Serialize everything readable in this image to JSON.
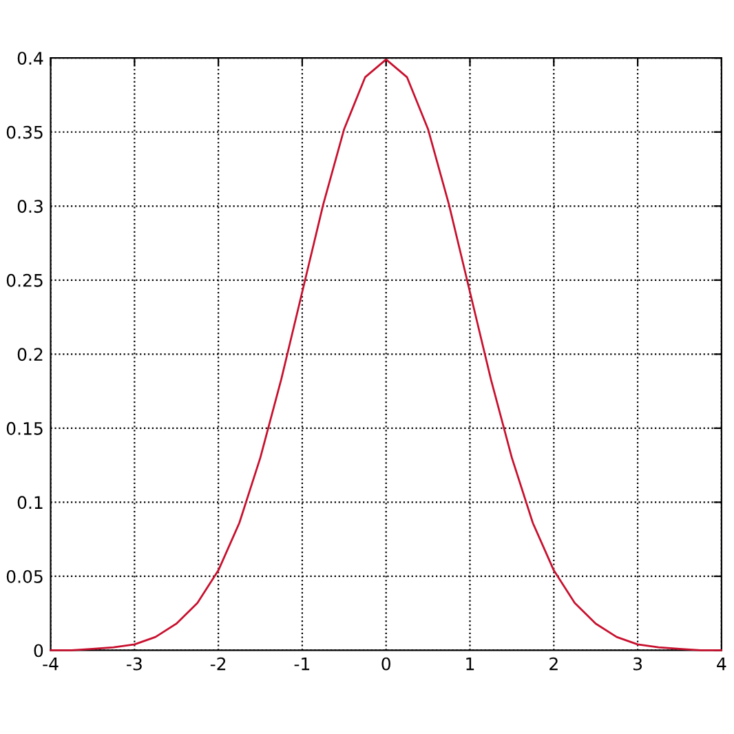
{
  "chart_data": {
    "type": "line",
    "x": [
      -4,
      -3.75,
      -3.5,
      -3.25,
      -3,
      -2.75,
      -2.5,
      -2.25,
      -2,
      -1.75,
      -1.5,
      -1.25,
      -1,
      -0.75,
      -0.5,
      -0.25,
      0,
      0.25,
      0.5,
      0.75,
      1,
      1.25,
      1.5,
      1.75,
      2,
      2.25,
      2.5,
      2.75,
      3,
      3.25,
      3.5,
      3.75,
      4
    ],
    "series": [
      {
        "color": "#c8102e",
        "values": [
          0.0,
          0.0,
          0.001,
          0.002,
          0.004,
          0.009,
          0.018,
          0.032,
          0.054,
          0.086,
          0.13,
          0.183,
          0.242,
          0.301,
          0.352,
          0.387,
          0.399,
          0.387,
          0.352,
          0.301,
          0.242,
          0.183,
          0.13,
          0.086,
          0.054,
          0.032,
          0.018,
          0.009,
          0.004,
          0.002,
          0.001,
          0.0,
          0.0
        ]
      }
    ],
    "xlim": [
      -4,
      4
    ],
    "ylim": [
      0,
      0.4
    ],
    "xticks": [
      -4,
      -3,
      -2,
      -1,
      0,
      1,
      2,
      3,
      4
    ],
    "yticks": [
      0,
      0.05,
      0.1,
      0.15,
      0.2,
      0.25,
      0.3,
      0.35,
      0.4
    ],
    "grid": true,
    "marker": "none",
    "line_style": "solid"
  }
}
